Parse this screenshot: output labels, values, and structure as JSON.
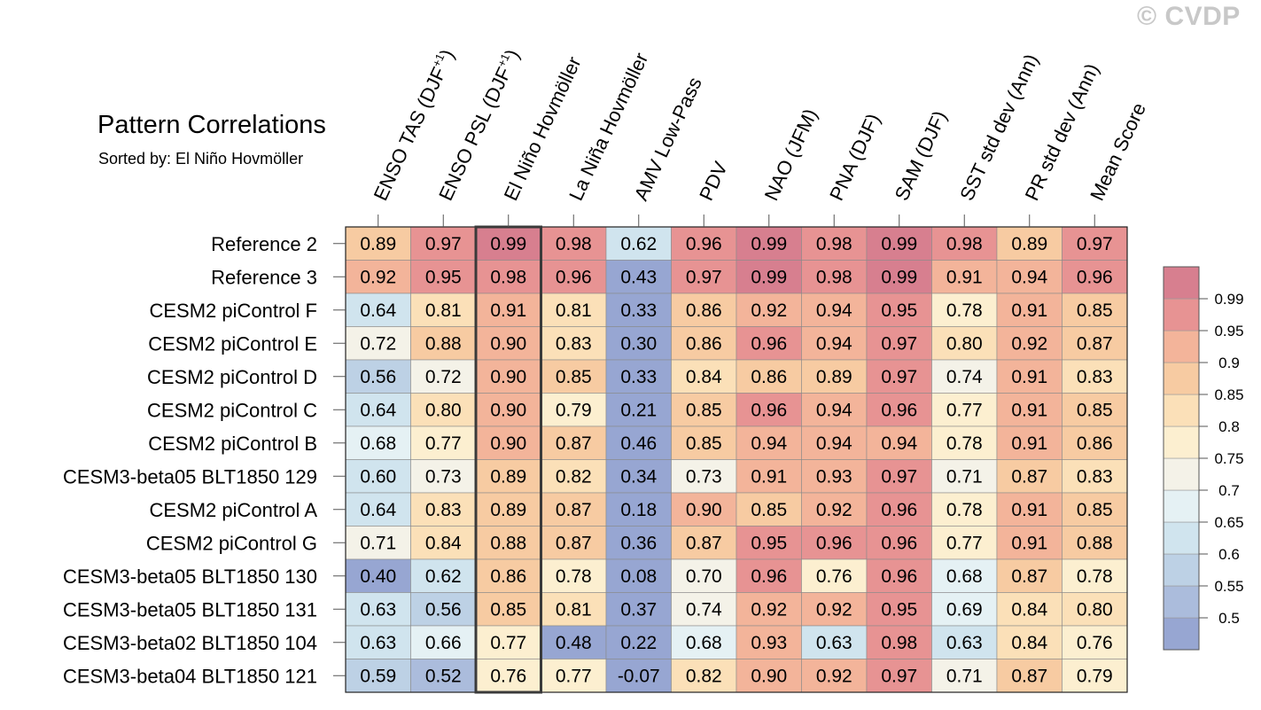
{
  "watermark": "© CVDP",
  "chart_data": {
    "type": "heatmap",
    "title": "Pattern Correlations",
    "subtitle": "Sorted by: El Niño Hovmöller",
    "highlight_column": "El Niño Hovmöller",
    "columns": [
      {
        "label": "ENSO TAS (DJF",
        "sup": "+1",
        "tail": ")"
      },
      {
        "label": "ENSO PSL (DJF",
        "sup": "+1",
        "tail": ")"
      },
      {
        "label": "El Niño Hovmöller",
        "sup": "",
        "tail": ""
      },
      {
        "label": "La Niña Hovmöller",
        "sup": "",
        "tail": ""
      },
      {
        "label": "AMV Low-Pass",
        "sup": "",
        "tail": ""
      },
      {
        "label": "PDV",
        "sup": "",
        "tail": ""
      },
      {
        "label": "NAO (JFM)",
        "sup": "",
        "tail": ""
      },
      {
        "label": "PNA (DJF)",
        "sup": "",
        "tail": ""
      },
      {
        "label": "SAM (DJF)",
        "sup": "",
        "tail": ""
      },
      {
        "label": "SST std dev (Ann)",
        "sup": "",
        "tail": ""
      },
      {
        "label": "PR std dev (Ann)",
        "sup": "",
        "tail": ""
      },
      {
        "label": "Mean Score",
        "sup": "",
        "tail": ""
      }
    ],
    "rows": [
      {
        "name": "Reference 2",
        "values": [
          "0.89",
          "0.97",
          "0.99",
          "0.98",
          "0.62",
          "0.96",
          "0.99",
          "0.98",
          "0.99",
          "0.98",
          "0.89",
          "0.97"
        ]
      },
      {
        "name": "Reference 3",
        "values": [
          "0.92",
          "0.95",
          "0.98",
          "0.96",
          "0.43",
          "0.97",
          "0.99",
          "0.98",
          "0.99",
          "0.91",
          "0.94",
          "0.96"
        ]
      },
      {
        "name": "CESM2 piControl F",
        "values": [
          "0.64",
          "0.81",
          "0.91",
          "0.81",
          "0.33",
          "0.86",
          "0.92",
          "0.94",
          "0.95",
          "0.78",
          "0.91",
          "0.85"
        ]
      },
      {
        "name": "CESM2 piControl E",
        "values": [
          "0.72",
          "0.88",
          "0.90",
          "0.83",
          "0.30",
          "0.86",
          "0.96",
          "0.94",
          "0.97",
          "0.80",
          "0.92",
          "0.87"
        ]
      },
      {
        "name": "CESM2 piControl D",
        "values": [
          "0.56",
          "0.72",
          "0.90",
          "0.85",
          "0.33",
          "0.84",
          "0.86",
          "0.89",
          "0.97",
          "0.74",
          "0.91",
          "0.83"
        ]
      },
      {
        "name": "CESM2 piControl C",
        "values": [
          "0.64",
          "0.80",
          "0.90",
          "0.79",
          "0.21",
          "0.85",
          "0.96",
          "0.94",
          "0.96",
          "0.77",
          "0.91",
          "0.85"
        ]
      },
      {
        "name": "CESM2 piControl B",
        "values": [
          "0.68",
          "0.77",
          "0.90",
          "0.87",
          "0.46",
          "0.85",
          "0.94",
          "0.94",
          "0.94",
          "0.78",
          "0.91",
          "0.86"
        ]
      },
      {
        "name": "CESM3-beta05 BLT1850 129",
        "values": [
          "0.60",
          "0.73",
          "0.89",
          "0.82",
          "0.34",
          "0.73",
          "0.91",
          "0.93",
          "0.97",
          "0.71",
          "0.87",
          "0.83"
        ]
      },
      {
        "name": "CESM2 piControl A",
        "values": [
          "0.64",
          "0.83",
          "0.89",
          "0.87",
          "0.18",
          "0.90",
          "0.85",
          "0.92",
          "0.96",
          "0.78",
          "0.91",
          "0.85"
        ]
      },
      {
        "name": "CESM2 piControl G",
        "values": [
          "0.71",
          "0.84",
          "0.88",
          "0.87",
          "0.36",
          "0.87",
          "0.95",
          "0.96",
          "0.96",
          "0.77",
          "0.91",
          "0.88"
        ]
      },
      {
        "name": "CESM3-beta05 BLT1850 130",
        "values": [
          "0.40",
          "0.62",
          "0.86",
          "0.78",
          "0.08",
          "0.70",
          "0.96",
          "0.76",
          "0.96",
          "0.68",
          "0.87",
          "0.78"
        ]
      },
      {
        "name": "CESM3-beta05 BLT1850 131",
        "values": [
          "0.63",
          "0.56",
          "0.85",
          "0.81",
          "0.37",
          "0.74",
          "0.92",
          "0.92",
          "0.95",
          "0.69",
          "0.84",
          "0.80"
        ]
      },
      {
        "name": "CESM3-beta02 BLT1850 104",
        "values": [
          "0.63",
          "0.66",
          "0.77",
          "0.48",
          "0.22",
          "0.68",
          "0.93",
          "0.63",
          "0.98",
          "0.63",
          "0.84",
          "0.76"
        ]
      },
      {
        "name": "CESM3-beta04 BLT1850 121",
        "values": [
          "0.59",
          "0.52",
          "0.76",
          "0.77",
          "-0.07",
          "0.82",
          "0.90",
          "0.92",
          "0.97",
          "0.71",
          "0.87",
          "0.79"
        ]
      }
    ],
    "colorbar": {
      "thresholds": [
        0.5,
        0.55,
        0.6,
        0.65,
        0.7,
        0.75,
        0.8,
        0.85,
        0.9,
        0.95,
        0.99
      ],
      "labels": [
        "0.5",
        "0.55",
        "0.6",
        "0.65",
        "0.7",
        "0.75",
        "0.8",
        "0.85",
        "0.9",
        "0.95",
        "0.99"
      ],
      "colors": [
        "#97a6d2",
        "#abbcdc",
        "#bdd1e5",
        "#d0e4ee",
        "#e5f1f4",
        "#f4f2e8",
        "#fcefd0",
        "#fbe0b8",
        "#f7cba2",
        "#f3b49a",
        "#e79393",
        "#d77f8f"
      ]
    }
  }
}
